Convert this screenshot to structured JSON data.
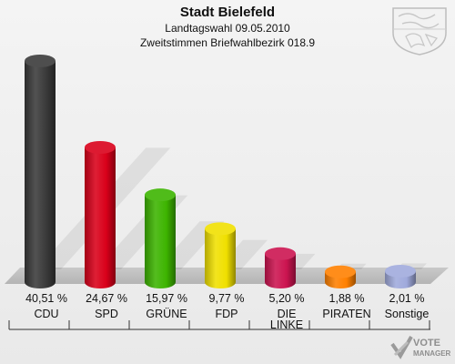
{
  "header": {
    "title": "Stadt Bielefeld",
    "subtitle1": "Landtagswahl 09.05.2010",
    "subtitle2": "Zweitstimmen Briefwahlbezirk 018.9"
  },
  "brand": {
    "line1": "VOTE",
    "line2": "MANAGER"
  },
  "chart_data": {
    "type": "bar",
    "title": "Stadt Bielefeld",
    "subtitle": "Landtagswahl 09.05.2010 — Zweitstimmen Briefwahlbezirk 018.9",
    "categories": [
      "CDU",
      "SPD",
      "GRÜNE",
      "FDP",
      "DIE LINKE",
      "PIRATEN",
      "Sonstige"
    ],
    "category_lines": [
      [
        "CDU"
      ],
      [
        "SPD"
      ],
      [
        "GRÜNE"
      ],
      [
        "FDP"
      ],
      [
        "DIE",
        "LINKE"
      ],
      [
        "PIRATEN"
      ],
      [
        "Sonstige"
      ]
    ],
    "values": [
      40.51,
      24.67,
      15.97,
      9.77,
      5.2,
      1.88,
      2.01
    ],
    "value_labels": [
      "40,51 %",
      "24,67 %",
      "15,97 %",
      "9,77 %",
      "5,20 %",
      "1,88 %",
      "2,01 %"
    ],
    "colors": [
      "#3a3a3a",
      "#d9001a",
      "#3db400",
      "#f0e000",
      "#cc1450",
      "#ff8000",
      "#a0aadc"
    ],
    "unit": "%",
    "ylim": [
      0,
      42
    ],
    "grid": false,
    "legend": "none"
  }
}
